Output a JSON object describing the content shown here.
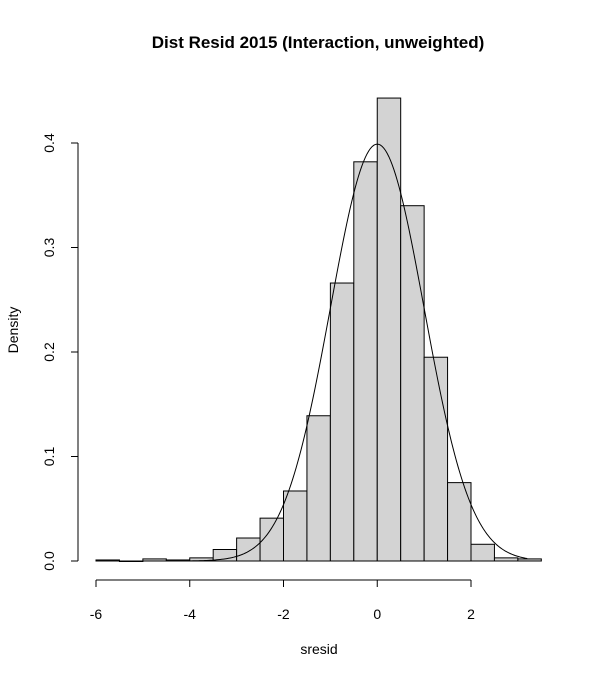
{
  "chart_data": {
    "type": "histogram",
    "title": "Dist Resid 2015 (Interaction, unweighted)",
    "xlabel": "sresid",
    "ylabel": "Density",
    "xlim": [
      -6,
      3.5
    ],
    "ylim": [
      0,
      0.45
    ],
    "x_ticks": [
      -6,
      -4,
      -2,
      0,
      2
    ],
    "x_tick_labels": [
      "-6",
      "-4",
      "-2",
      "0",
      "2"
    ],
    "y_ticks": [
      0,
      0.1,
      0.2,
      0.3,
      0.4
    ],
    "y_tick_labels": [
      "0.0",
      "0.1",
      "0.2",
      "0.3",
      "0.4"
    ],
    "bin_width": 0.5,
    "bins": [
      {
        "x0": -6.0,
        "x1": -5.5,
        "density": 0.001
      },
      {
        "x0": -5.5,
        "x1": -5.0,
        "density": 0.0
      },
      {
        "x0": -5.0,
        "x1": -4.5,
        "density": 0.002
      },
      {
        "x0": -4.5,
        "x1": -4.0,
        "density": 0.001
      },
      {
        "x0": -4.0,
        "x1": -3.5,
        "density": 0.003
      },
      {
        "x0": -3.5,
        "x1": -3.0,
        "density": 0.011
      },
      {
        "x0": -3.0,
        "x1": -2.5,
        "density": 0.022
      },
      {
        "x0": -2.5,
        "x1": -2.0,
        "density": 0.041
      },
      {
        "x0": -2.0,
        "x1": -1.5,
        "density": 0.067
      },
      {
        "x0": -1.5,
        "x1": -1.0,
        "density": 0.139
      },
      {
        "x0": -1.0,
        "x1": -0.5,
        "density": 0.266
      },
      {
        "x0": -0.5,
        "x1": 0.0,
        "density": 0.382
      },
      {
        "x0": 0.0,
        "x1": 0.5,
        "density": 0.443
      },
      {
        "x0": 0.5,
        "x1": 1.0,
        "density": 0.34
      },
      {
        "x0": 1.0,
        "x1": 1.5,
        "density": 0.195
      },
      {
        "x0": 1.5,
        "x1": 2.0,
        "density": 0.075
      },
      {
        "x0": 2.0,
        "x1": 2.5,
        "density": 0.016
      },
      {
        "x0": 2.5,
        "x1": 3.0,
        "density": 0.003
      },
      {
        "x0": 3.0,
        "x1": 3.5,
        "density": 0.002
      }
    ],
    "density_curve": {
      "type": "line",
      "mean": 0,
      "sd": 1,
      "x_range": [
        -4,
        3.2
      ]
    },
    "grid": false
  }
}
